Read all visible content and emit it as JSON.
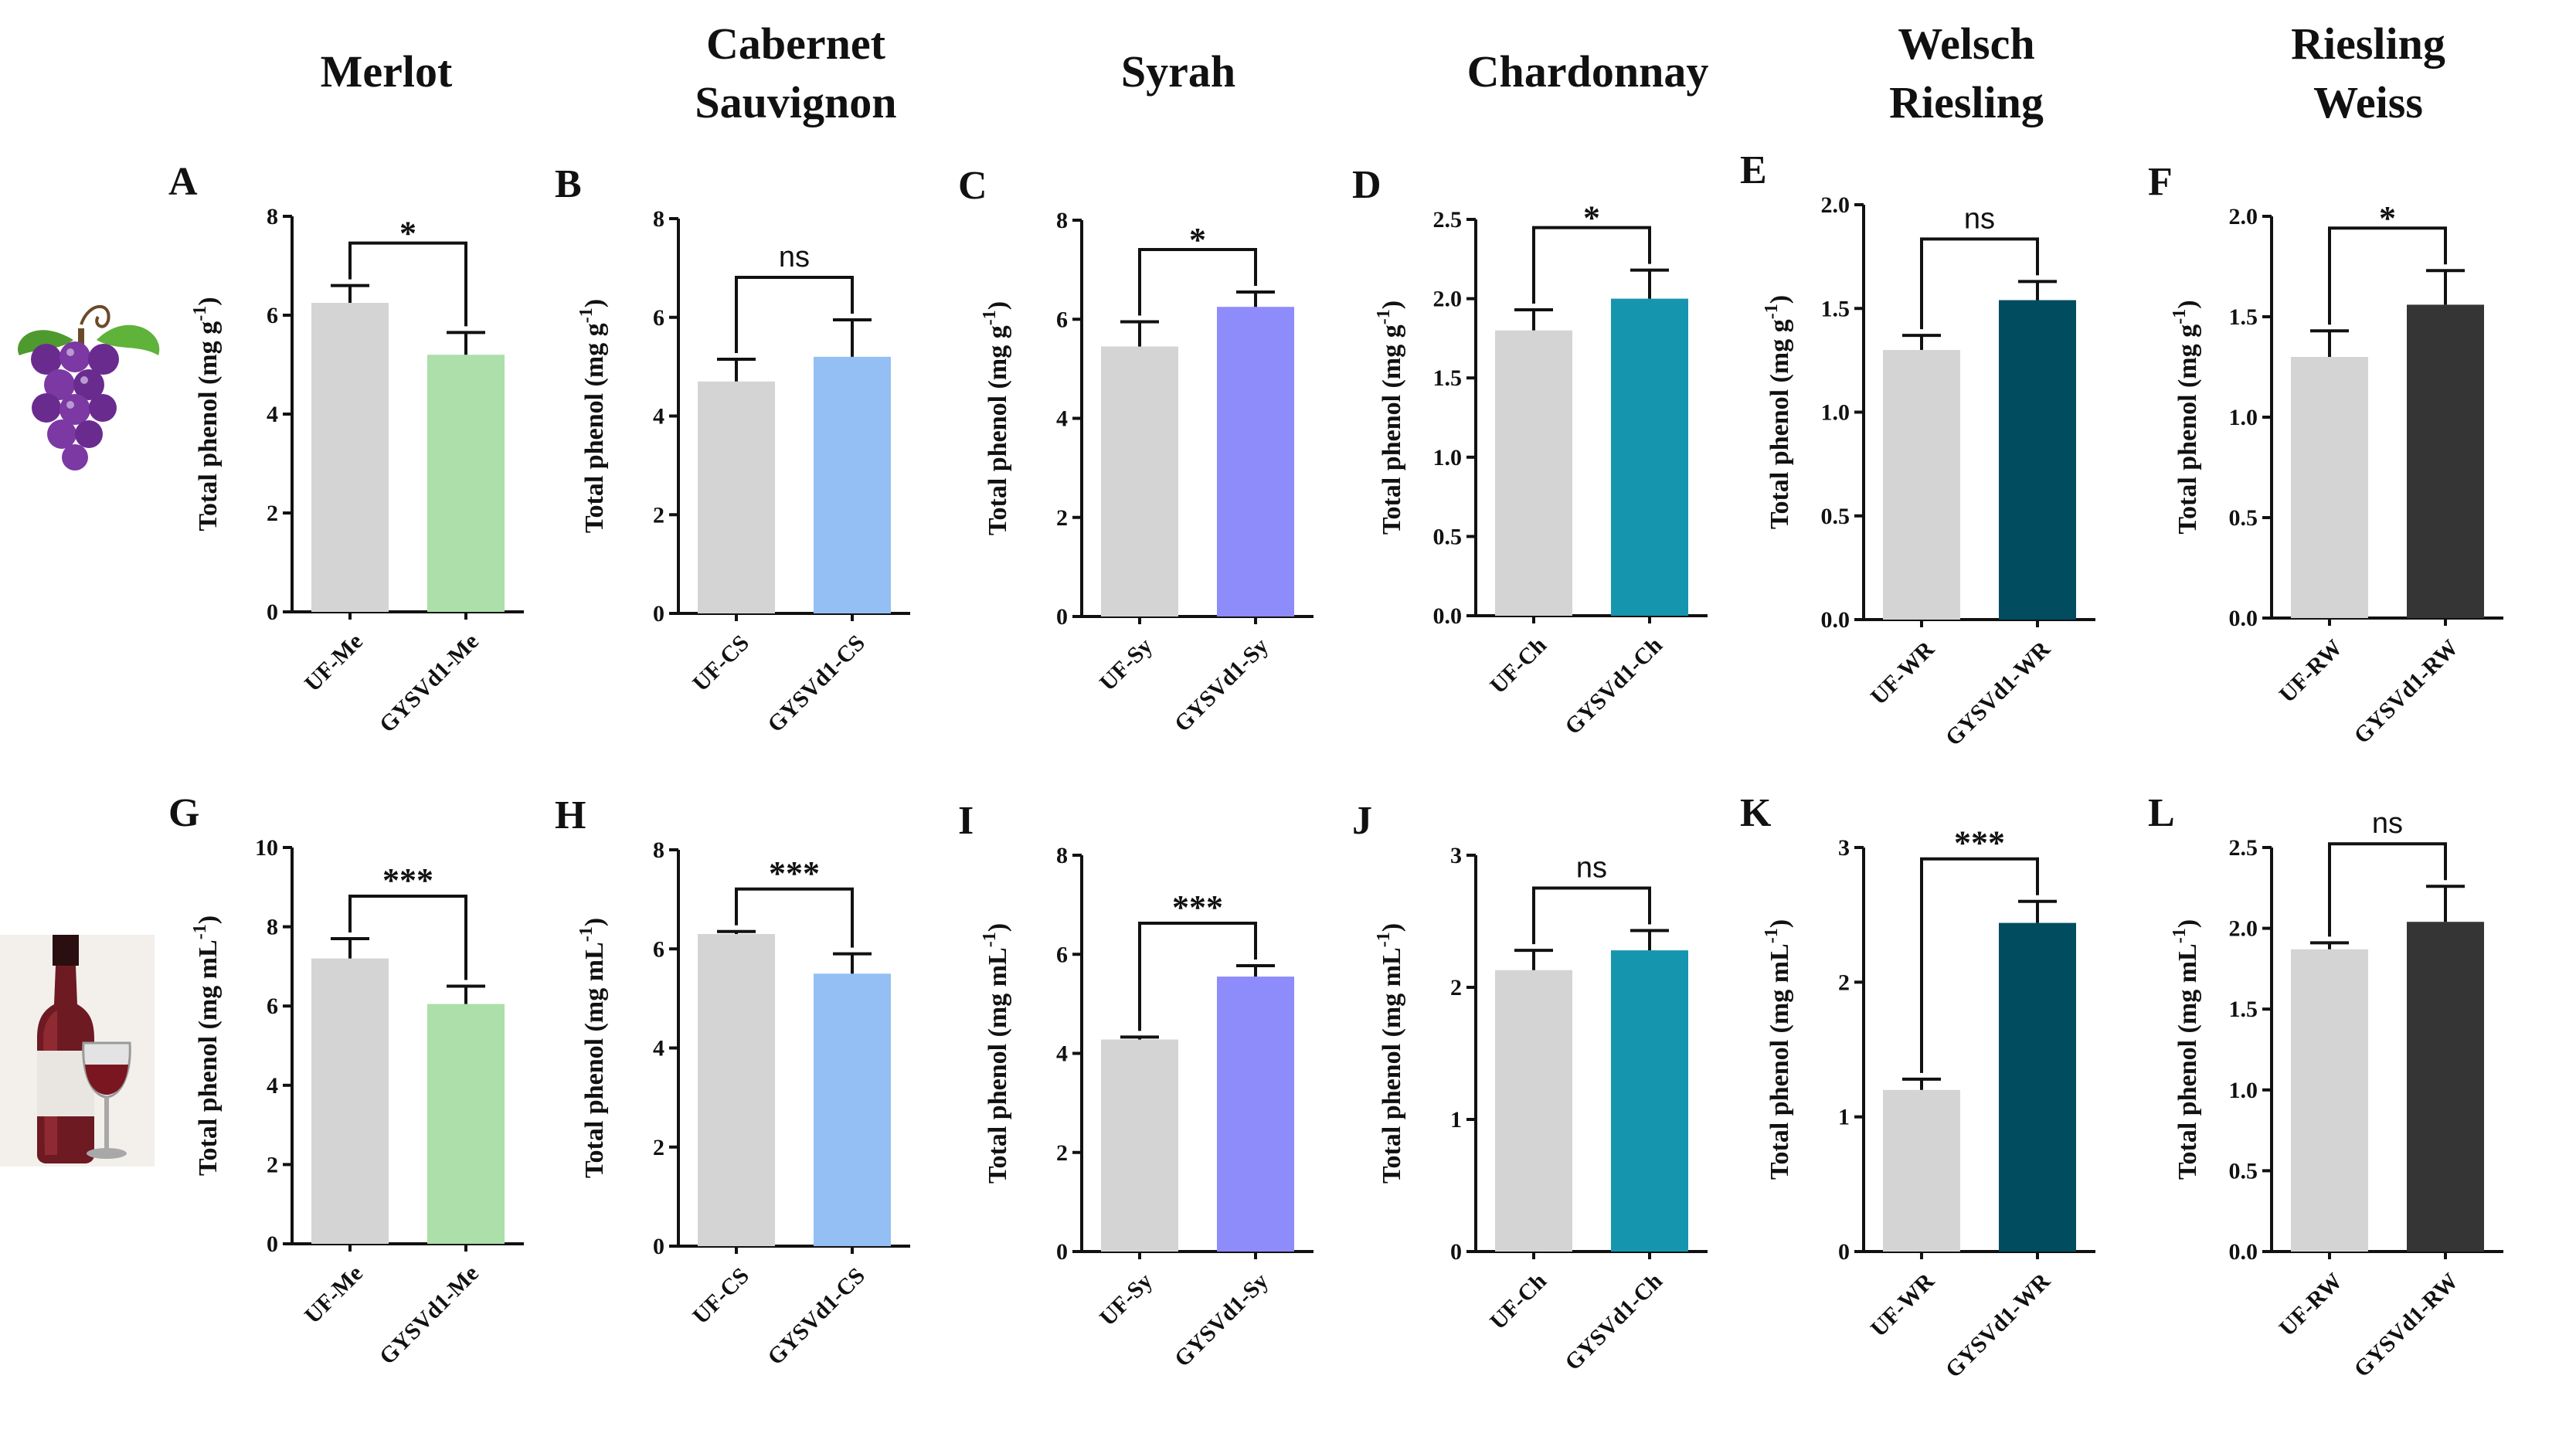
{
  "column_titles": [
    [
      "Merlot"
    ],
    [
      "Cabernet",
      "Sauvignon"
    ],
    [
      "Syrah"
    ],
    [
      "Chardonnay"
    ],
    [
      "Welsch",
      "Riesling"
    ],
    [
      "Riesling",
      "Weiss"
    ]
  ],
  "row_icons": [
    "grape-cluster-icon",
    "wine-bottle-glass-icon"
  ],
  "chart_data": [
    {
      "panel": "A",
      "type": "bar",
      "categories": [
        "UF-Me",
        "GYSVd1-Me"
      ],
      "values": [
        6.25,
        5.2
      ],
      "errors": [
        0.35,
        0.45
      ],
      "colors": [
        "#d4d4d4",
        "#acdfa9"
      ],
      "ylim": [
        0,
        8
      ],
      "yticks": [
        "0",
        "2",
        "4",
        "6",
        "8"
      ],
      "ylabel": "Total phenol (mg g",
      "ylabel_sup": "-1",
      "significance": "*"
    },
    {
      "panel": "B",
      "type": "bar",
      "categories": [
        "UF-CS",
        "GYSVd1-CS"
      ],
      "values": [
        4.7,
        5.2
      ],
      "errors": [
        0.45,
        0.75
      ],
      "colors": [
        "#d4d4d4",
        "#93bff5"
      ],
      "ylim": [
        0,
        8
      ],
      "yticks": [
        "0",
        "2",
        "4",
        "6",
        "8"
      ],
      "ylabel": "Total phenol (mg g",
      "ylabel_sup": "-1",
      "significance": "ns"
    },
    {
      "panel": "C",
      "type": "bar",
      "categories": [
        "UF-Sy",
        "GYSVd1-Sy"
      ],
      "values": [
        5.45,
        6.25
      ],
      "errors": [
        0.5,
        0.3
      ],
      "colors": [
        "#d4d4d4",
        "#8e8bfb"
      ],
      "ylim": [
        0,
        8
      ],
      "yticks": [
        "0",
        "2",
        "4",
        "6",
        "8"
      ],
      "ylabel": "Total phenol (mg g",
      "ylabel_sup": "-1",
      "significance": "*"
    },
    {
      "panel": "D",
      "type": "bar",
      "categories": [
        "UF-Ch",
        "GYSVd1-Ch"
      ],
      "values": [
        1.8,
        2.0
      ],
      "errors": [
        0.13,
        0.18
      ],
      "colors": [
        "#d4d4d4",
        "#1696ae"
      ],
      "ylim": [
        0,
        2.5
      ],
      "yticks": [
        "0.0",
        "0.5",
        "1.0",
        "1.5",
        "2.0",
        "2.5"
      ],
      "ylabel": "Total phenol (mg g",
      "ylabel_sup": "-1",
      "significance": "*"
    },
    {
      "panel": "E",
      "type": "bar",
      "categories": [
        "UF-WR",
        "GYSVd1-WR"
      ],
      "values": [
        1.3,
        1.54
      ],
      "errors": [
        0.07,
        0.09
      ],
      "colors": [
        "#d4d4d4",
        "#014c5f"
      ],
      "ylim": [
        0,
        2.0
      ],
      "yticks": [
        "0.0",
        "0.5",
        "1.0",
        "1.5",
        "2.0"
      ],
      "ylabel": "Total phenol (mg g",
      "ylabel_sup": "-1",
      "significance": "ns"
    },
    {
      "panel": "F",
      "type": "bar",
      "categories": [
        "UF-RW",
        "GYSVd1-RW"
      ],
      "values": [
        1.3,
        1.56
      ],
      "errors": [
        0.13,
        0.17
      ],
      "colors": [
        "#d4d4d4",
        "#353535"
      ],
      "ylim": [
        0,
        2.0
      ],
      "yticks": [
        "0.0",
        "0.5",
        "1.0",
        "1.5",
        "2.0"
      ],
      "ylabel": "Total phenol (mg g",
      "ylabel_sup": "-1",
      "significance": "*"
    },
    {
      "panel": "G",
      "type": "bar",
      "categories": [
        "UF-Me",
        "GYSVd1-Me"
      ],
      "values": [
        7.2,
        6.05
      ],
      "errors": [
        0.5,
        0.45
      ],
      "colors": [
        "#d4d4d4",
        "#acdfa9"
      ],
      "ylim": [
        0,
        10
      ],
      "yticks": [
        "0",
        "2",
        "4",
        "6",
        "8",
        "10"
      ],
      "ylabel": "Total phenol (mg mL",
      "ylabel_sup": "-1",
      "significance": "***"
    },
    {
      "panel": "H",
      "type": "bar",
      "categories": [
        "UF-CS",
        "GYSVd1-CS"
      ],
      "values": [
        6.3,
        5.5
      ],
      "errors": [
        0.05,
        0.4
      ],
      "colors": [
        "#d4d4d4",
        "#93bff5"
      ],
      "ylim": [
        0,
        8
      ],
      "yticks": [
        "0",
        "2",
        "4",
        "6",
        "8"
      ],
      "ylabel": "Total phenol (mg mL",
      "ylabel_sup": "-1",
      "significance": "***"
    },
    {
      "panel": "I",
      "type": "bar",
      "categories": [
        "UF-Sy",
        "GYSVd1-Sy"
      ],
      "values": [
        4.28,
        5.55
      ],
      "errors": [
        0.05,
        0.22
      ],
      "colors": [
        "#d4d4d4",
        "#8e8bfb"
      ],
      "ylim": [
        0,
        8
      ],
      "yticks": [
        "0",
        "2",
        "4",
        "6",
        "8"
      ],
      "ylabel": "Total phenol (mg mL",
      "ylabel_sup": "-1",
      "significance": "***"
    },
    {
      "panel": "J",
      "type": "bar",
      "categories": [
        "UF-Ch",
        "GYSVd1-Ch"
      ],
      "values": [
        2.13,
        2.28
      ],
      "errors": [
        0.15,
        0.15
      ],
      "colors": [
        "#d4d4d4",
        "#1696ae"
      ],
      "ylim": [
        0,
        3
      ],
      "yticks": [
        "0",
        "1",
        "2",
        "3"
      ],
      "ylabel": "Total phenol (mg mL",
      "ylabel_sup": "-1",
      "significance": "ns"
    },
    {
      "panel": "K",
      "type": "bar",
      "categories": [
        "UF-WR",
        "GYSVd1-WR"
      ],
      "values": [
        1.2,
        2.44
      ],
      "errors": [
        0.08,
        0.16
      ],
      "colors": [
        "#d4d4d4",
        "#014c5f"
      ],
      "ylim": [
        0,
        3
      ],
      "yticks": [
        "0",
        "1",
        "2",
        "3"
      ],
      "ylabel": "Total phenol (mg mL",
      "ylabel_sup": "-1",
      "significance": "***"
    },
    {
      "panel": "L",
      "type": "bar",
      "categories": [
        "UF-RW",
        "GYSVd1-RW"
      ],
      "values": [
        1.87,
        2.04
      ],
      "errors": [
        0.04,
        0.22
      ],
      "colors": [
        "#d4d4d4",
        "#353535"
      ],
      "ylim": [
        0,
        2.5
      ],
      "yticks": [
        "0.0",
        "0.5",
        "1.0",
        "1.5",
        "2.0",
        "2.5"
      ],
      "ylabel": "Total phenol (mg mL",
      "ylabel_sup": "-1",
      "significance": "ns"
    }
  ]
}
